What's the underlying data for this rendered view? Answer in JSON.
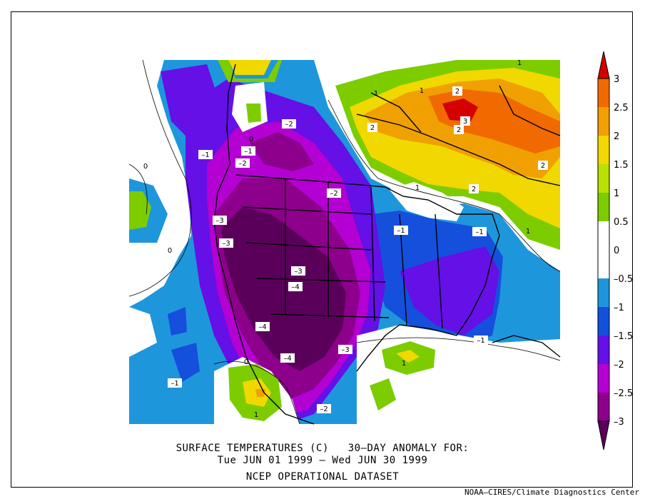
{
  "title": {
    "line1": "SURFACE TEMPERATURES (C)   30–DAY ANOMALY FOR:",
    "line2": "Tue JUN 01 1999 – Wed JUN 30 1999",
    "line3": "NCEP OPERATIONAL DATASET"
  },
  "credit": "NOAA–CIRES/Climate Diagnostics Center",
  "legend": {
    "levels": [
      "3",
      "2.5",
      "2",
      "1.5",
      "1",
      "0.5",
      "0",
      "–0.5",
      "–1",
      "–1.5",
      "–2",
      "–2.5",
      "–3"
    ],
    "colors": [
      "#d40000",
      "#f06a00",
      "#f0a000",
      "#f0d800",
      "#b8e000",
      "#7ccc00",
      "#ffffff",
      "#1e96dc",
      "#1450dc",
      "#6410e6",
      "#b400d2",
      "#8c008c",
      "#5a005a"
    ]
  },
  "contour_labels": [
    {
      "text": "1"
    },
    {
      "text": "2"
    },
    {
      "text": "2"
    },
    {
      "text": "3"
    },
    {
      "text": "2"
    },
    {
      "text": "1"
    },
    {
      "text": "2"
    },
    {
      "text": "2"
    },
    {
      "text": "1"
    },
    {
      "text": "1"
    },
    {
      "text": "–2"
    },
    {
      "text": "–1"
    },
    {
      "text": "–1"
    },
    {
      "text": "–2"
    },
    {
      "text": "0"
    },
    {
      "text": "–2"
    },
    {
      "text": "–3"
    },
    {
      "text": "–3"
    },
    {
      "text": "0"
    },
    {
      "text": "–1"
    },
    {
      "text": "–1"
    },
    {
      "text": "–3"
    },
    {
      "text": "–4"
    },
    {
      "text": "–4"
    },
    {
      "text": "–3"
    },
    {
      "text": "–4"
    },
    {
      "text": "–1"
    },
    {
      "text": "1"
    },
    {
      "text": "–1"
    },
    {
      "text": "1"
    },
    {
      "text": "–2"
    },
    {
      "text": "0"
    },
    {
      "text": "0"
    },
    {
      "text": "1"
    }
  ]
}
